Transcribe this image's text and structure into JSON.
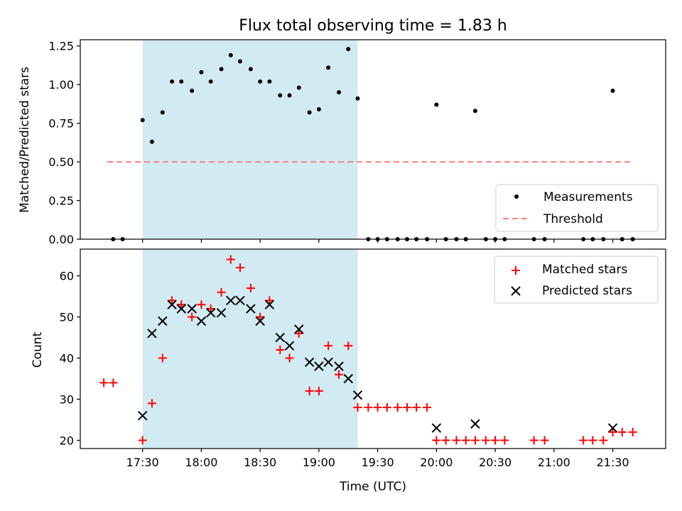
{
  "title": "Flux total observing time = 1.83 h",
  "colors": {
    "shade": "#add8e6",
    "threshold": "#ff7f7f",
    "matched": "#ff0000",
    "predicted": "#000000",
    "measurement": "#000000"
  },
  "chart_data": [
    {
      "type": "scatter",
      "ylabel": "Matched/Predicted stars",
      "xlim": [
        16.97,
        21.95
      ],
      "ylim": [
        0,
        1.29
      ],
      "yticks": [
        0.0,
        0.25,
        0.5,
        0.75,
        1.0,
        1.25
      ],
      "ytick_labels": [
        "0.00",
        "0.25",
        "0.50",
        "0.75",
        "1.00",
        "1.25"
      ],
      "grid": false,
      "legend": {
        "placement": "lower-right",
        "entries": [
          "Measurements",
          "Threshold"
        ]
      },
      "shaded_interval": {
        "start": 17.5,
        "end": 19.33
      },
      "threshold": {
        "name": "Threshold",
        "value": 0.5,
        "x_start": 17.2,
        "x_end": 21.67
      },
      "series": [
        {
          "name": "Measurements",
          "x": [
            17.25,
            17.33,
            17.5,
            17.58,
            17.67,
            17.75,
            17.83,
            17.92,
            18.0,
            18.08,
            18.17,
            18.25,
            18.33,
            18.42,
            18.5,
            18.58,
            18.67,
            18.75,
            18.83,
            18.92,
            19.0,
            19.08,
            19.17,
            19.25,
            19.33,
            19.42,
            19.5,
            19.58,
            19.67,
            19.75,
            19.83,
            19.92,
            20.0,
            20.08,
            20.17,
            20.25,
            20.33,
            20.42,
            20.5,
            20.58,
            20.83,
            20.92,
            21.25,
            21.33,
            21.42,
            21.5,
            21.58,
            21.67
          ],
          "y": [
            0,
            0,
            0.77,
            0.63,
            0.82,
            1.02,
            1.02,
            0.96,
            1.08,
            1.02,
            1.1,
            1.19,
            1.15,
            1.1,
            1.02,
            1.02,
            0.93,
            0.93,
            0.98,
            0.82,
            0.84,
            1.11,
            0.95,
            1.23,
            0.91,
            0,
            0,
            0,
            0,
            0,
            0,
            0,
            0.87,
            0,
            0,
            0,
            0.83,
            0,
            0,
            0,
            0,
            0,
            0,
            0,
            0,
            0.96,
            0,
            0
          ]
        }
      ]
    },
    {
      "type": "scatter",
      "ylabel": "Count",
      "xlabel": "Time (UTC)",
      "xlim": [
        16.97,
        21.95
      ],
      "ylim": [
        18,
        66.5
      ],
      "yticks": [
        20,
        30,
        40,
        50,
        60
      ],
      "ytick_labels": [
        "20",
        "30",
        "40",
        "50",
        "60"
      ],
      "xticks": [
        17.5,
        18.0,
        18.5,
        19.0,
        19.5,
        20.0,
        20.5,
        21.0,
        21.5
      ],
      "xtick_labels": [
        "17:30",
        "18:00",
        "18:30",
        "19:00",
        "19:30",
        "20:00",
        "20:30",
        "21:00",
        "21:30"
      ],
      "grid": false,
      "legend": {
        "placement": "upper-right",
        "entries": [
          "Matched stars",
          "Predicted stars"
        ]
      },
      "shaded_interval": {
        "start": 17.5,
        "end": 19.33
      },
      "series": [
        {
          "name": "Matched stars",
          "marker": "plus",
          "x": [
            17.17,
            17.25,
            17.5,
            17.58,
            17.67,
            17.75,
            17.83,
            17.92,
            18.0,
            18.08,
            18.17,
            18.25,
            18.33,
            18.42,
            18.5,
            18.58,
            18.67,
            18.75,
            18.83,
            18.92,
            19.0,
            19.08,
            19.17,
            19.25,
            19.33,
            19.42,
            19.5,
            19.58,
            19.67,
            19.75,
            19.83,
            19.92,
            20.0,
            20.08,
            20.17,
            20.25,
            20.33,
            20.42,
            20.5,
            20.58,
            20.83,
            20.92,
            21.25,
            21.33,
            21.42,
            21.5,
            21.58,
            21.67
          ],
          "y": [
            34,
            34,
            20,
            29,
            40,
            54,
            53,
            50,
            53,
            52,
            56,
            64,
            62,
            57,
            50,
            54,
            42,
            40,
            46,
            32,
            32,
            43,
            36,
            43,
            28,
            28,
            28,
            28,
            28,
            28,
            28,
            28,
            20,
            20,
            20,
            20,
            20,
            20,
            20,
            20,
            20,
            20,
            20,
            20,
            20,
            22,
            22,
            22
          ]
        },
        {
          "name": "Predicted stars",
          "marker": "x",
          "x": [
            17.5,
            17.58,
            17.67,
            17.75,
            17.83,
            17.92,
            18.0,
            18.08,
            18.17,
            18.25,
            18.33,
            18.42,
            18.5,
            18.58,
            18.67,
            18.75,
            18.83,
            18.92,
            19.0,
            19.08,
            19.17,
            19.25,
            19.33,
            20.0,
            20.33,
            21.5
          ],
          "y": [
            26,
            46,
            49,
            53,
            52,
            52,
            49,
            51,
            51,
            54,
            54,
            52,
            49,
            53,
            45,
            43,
            47,
            39,
            38,
            39,
            38,
            35,
            31,
            23,
            24,
            23
          ]
        }
      ]
    }
  ]
}
